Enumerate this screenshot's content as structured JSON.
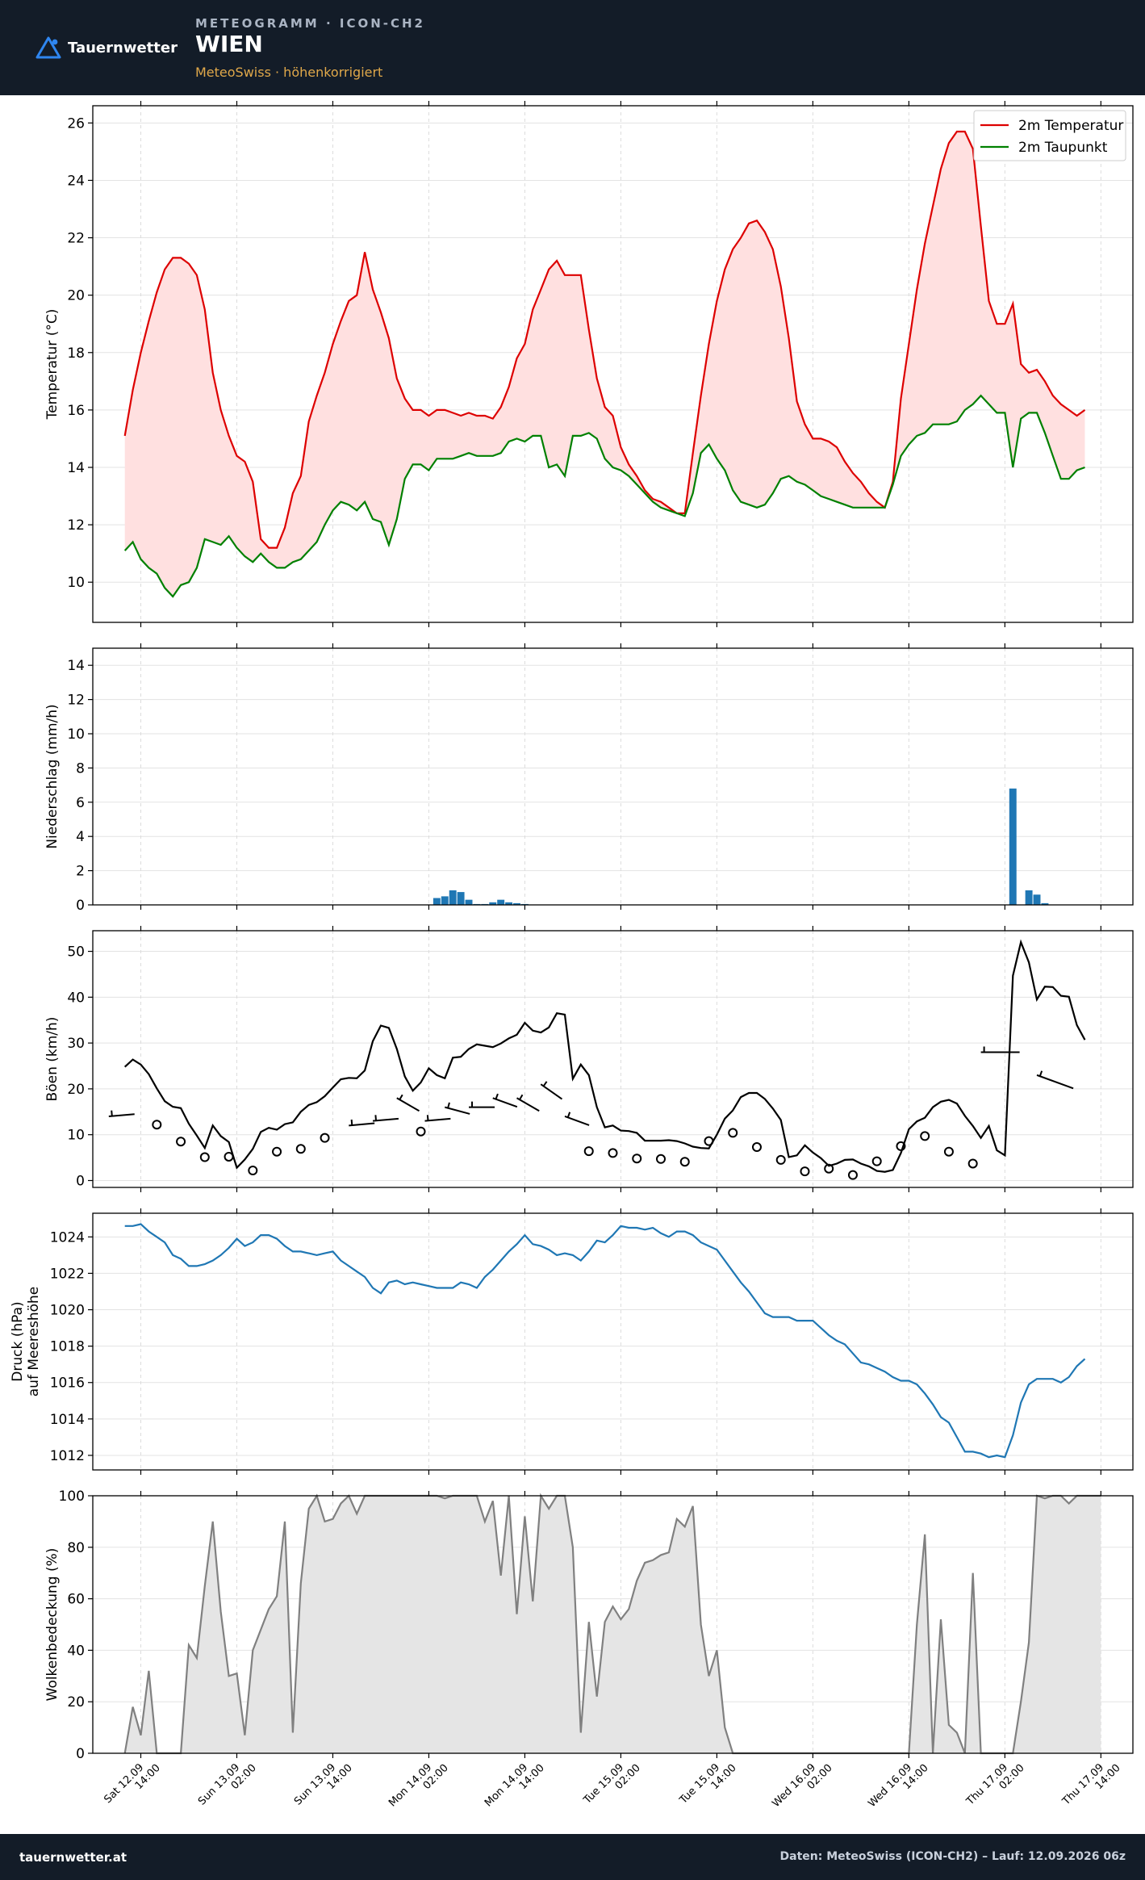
{
  "header": {
    "brand": "Tauernwetter",
    "kicker": "METEOGRAMM · ICON-CH2",
    "title": "WIEN",
    "subtitle": "MeteoSwiss · höhenkorrigiert"
  },
  "footer": {
    "site": "tauernwetter.at",
    "credit": "Daten: MeteoSwiss (ICON-CH2) – Lauf: 12.09.2026 06z"
  },
  "colors": {
    "temperature": "#dd0000",
    "dewpoint": "#008000",
    "temp_fill": "#ffe0e0",
    "precip": "#1f77b4",
    "gust": "#000000",
    "pressure": "#1f77b4",
    "cloud_line": "#808080",
    "cloud_fill": "#e5e5e5",
    "header_bg": "#131c28",
    "subtitle": "#e0a84a"
  },
  "x_axis": {
    "start_hour": 6,
    "end_hour": 126,
    "tick_hours": [
      8,
      20,
      32,
      44,
      56,
      68,
      80,
      92,
      104,
      116,
      128
    ],
    "tick_labels": [
      [
        "Sat 12.09",
        "14:00"
      ],
      [
        "Sun 13.09",
        "02:00"
      ],
      [
        "Sun 13.09",
        "14:00"
      ],
      [
        "Mon 14.09",
        "02:00"
      ],
      [
        "Mon 14.09",
        "14:00"
      ],
      [
        "Tue 15.09",
        "02:00"
      ],
      [
        "Tue 15.09",
        "14:00"
      ],
      [
        "Wed 16.09",
        "02:00"
      ],
      [
        "Wed 16.09",
        "14:00"
      ],
      [
        "Thu 17.09",
        "02:00"
      ],
      [
        "Thu 17.09",
        "14:00"
      ]
    ]
  },
  "chart_data": [
    {
      "type": "line",
      "ylabel": "Temperatur (°C)",
      "ylim": [
        8.6,
        26.6
      ],
      "yticks": [
        10,
        12,
        14,
        16,
        18,
        20,
        22,
        24,
        26
      ],
      "grid": true,
      "legend_position": "top-right",
      "series": [
        {
          "name": "2m Temperatur",
          "values": [
            15.1,
            16.7,
            18.0,
            19.1,
            20.1,
            20.9,
            21.3,
            21.3,
            21.1,
            20.7,
            19.5,
            17.3,
            16.0,
            15.1,
            14.4,
            14.2,
            13.5,
            11.5,
            11.2,
            11.2,
            11.9,
            13.1,
            13.7,
            15.6,
            16.5,
            17.3,
            18.3,
            19.1,
            19.8,
            20.0,
            21.5,
            20.2,
            19.4,
            18.5,
            17.1,
            16.4,
            16.0,
            16.0,
            15.8,
            16.0,
            16.0,
            15.9,
            15.8,
            15.9,
            15.8,
            15.8,
            15.7,
            16.1,
            16.8,
            17.8,
            18.3,
            19.5,
            20.2,
            20.9,
            21.2,
            20.7,
            20.7,
            20.7,
            18.8,
            17.1,
            16.1,
            15.8,
            14.7,
            14.1,
            13.7,
            13.2,
            12.9,
            12.8,
            12.6,
            12.4,
            12.4,
            14.5,
            16.5,
            18.3,
            19.8,
            20.9,
            21.6,
            22.0,
            22.5,
            22.6,
            22.2,
            21.6,
            20.3,
            18.5,
            16.3,
            15.5,
            15.0,
            15.0,
            14.9,
            14.7,
            14.2,
            13.8,
            13.5,
            13.1,
            12.8,
            12.6,
            13.5,
            16.4,
            18.3,
            20.2,
            21.8,
            23.1,
            24.4,
            25.3,
            25.7,
            25.7,
            25.1,
            22.4,
            19.8,
            19.0,
            19.0,
            19.7,
            17.6,
            17.3,
            17.4,
            17.0,
            16.5,
            16.2,
            16.0,
            15.8,
            16.0
          ]
        },
        {
          "name": "2m Taupunkt",
          "values": [
            11.1,
            11.4,
            10.8,
            10.5,
            10.3,
            9.8,
            9.5,
            9.9,
            10.0,
            10.5,
            11.5,
            11.4,
            11.3,
            11.6,
            11.2,
            10.9,
            10.7,
            11.0,
            10.7,
            10.5,
            10.5,
            10.7,
            10.8,
            11.1,
            11.4,
            12.0,
            12.5,
            12.8,
            12.7,
            12.5,
            12.8,
            12.2,
            12.1,
            11.3,
            12.2,
            13.6,
            14.1,
            14.1,
            13.9,
            14.3,
            14.3,
            14.3,
            14.4,
            14.5,
            14.4,
            14.4,
            14.4,
            14.5,
            14.9,
            15.0,
            14.9,
            15.1,
            15.1,
            14.0,
            14.1,
            13.7,
            15.1,
            15.1,
            15.2,
            15.0,
            14.3,
            14.0,
            13.9,
            13.7,
            13.4,
            13.1,
            12.8,
            12.6,
            12.5,
            12.4,
            12.3,
            13.1,
            14.5,
            14.8,
            14.3,
            13.9,
            13.2,
            12.8,
            12.7,
            12.6,
            12.7,
            13.1,
            13.6,
            13.7,
            13.5,
            13.4,
            13.2,
            13.0,
            12.9,
            12.8,
            12.7,
            12.6,
            12.6,
            12.6,
            12.6,
            12.6,
            13.4,
            14.4,
            14.8,
            15.1,
            15.2,
            15.5,
            15.5,
            15.5,
            15.6,
            16.0,
            16.2,
            16.5,
            16.2,
            15.9,
            15.9,
            14.0,
            15.7,
            15.9,
            15.9,
            15.2,
            14.4,
            13.6,
            13.6,
            13.9,
            14.0
          ]
        }
      ]
    },
    {
      "type": "bar",
      "ylabel": "Niederschlag (mm/h)",
      "ylim": [
        0,
        15
      ],
      "yticks": [
        0,
        2,
        4,
        6,
        8,
        10,
        12,
        14
      ],
      "grid": true,
      "series": [
        {
          "name": "",
          "values": [
            0,
            0,
            0,
            0,
            0,
            0,
            0,
            0,
            0,
            0,
            0,
            0,
            0,
            0,
            0,
            0,
            0,
            0,
            0,
            0,
            0,
            0,
            0,
            0,
            0,
            0,
            0,
            0,
            0,
            0,
            0,
            0,
            0,
            0,
            0,
            0,
            0,
            0,
            0,
            0.4,
            0.5,
            0.85,
            0.75,
            0.3,
            0.05,
            0.05,
            0.15,
            0.3,
            0.15,
            0.1,
            0.05,
            0,
            0,
            0,
            0,
            0,
            0,
            0,
            0,
            0,
            0,
            0,
            0,
            0,
            0,
            0,
            0,
            0,
            0,
            0,
            0,
            0,
            0,
            0,
            0,
            0,
            0,
            0,
            0,
            0,
            0,
            0,
            0,
            0,
            0,
            0,
            0,
            0,
            0,
            0,
            0,
            0,
            0,
            0,
            0,
            0,
            0,
            0,
            0,
            0,
            0,
            0,
            0,
            0,
            0,
            0,
            0,
            0,
            0,
            0,
            0,
            6.8,
            0,
            0.85,
            0.6,
            0.1,
            0,
            0,
            0,
            0,
            0
          ]
        }
      ]
    },
    {
      "type": "line",
      "ylabel": "Böen (km/h)",
      "ylim": [
        -1.5,
        54.5
      ],
      "yticks": [
        0,
        10,
        20,
        30,
        40,
        50
      ],
      "grid": true,
      "series": [
        {
          "name": "",
          "values": [
            24.8,
            26.4,
            25.3,
            23.2,
            20.1,
            17.3,
            16.1,
            15.8,
            12.4,
            9.8,
            7.1,
            12.0,
            9.7,
            8.4,
            2.8,
            4.6,
            6.9,
            10.6,
            11.5,
            11.1,
            12.3,
            12.7,
            15.0,
            16.5,
            17.1,
            18.4,
            20.3,
            22.1,
            22.4,
            22.3,
            24.0,
            30.4,
            33.8,
            33.3,
            28.7,
            22.7,
            19.6,
            21.4,
            24.5,
            23.0,
            22.3,
            26.8,
            27.0,
            28.7,
            29.7,
            29.4,
            29.1,
            29.9,
            31.0,
            31.8,
            34.4,
            32.7,
            32.3,
            33.4,
            36.5,
            36.2,
            22.2,
            25.3,
            23.0,
            16.0,
            11.6,
            12.0,
            10.9,
            10.8,
            10.4,
            8.7,
            8.7,
            8.7,
            8.8,
            8.6,
            8.1,
            7.4,
            7.1,
            7.0,
            10.0,
            13.5,
            15.3,
            18.2,
            19.1,
            19.1,
            17.8,
            15.7,
            13.2,
            5.1,
            5.5,
            7.7,
            6.1,
            4.9,
            3.2,
            3.7,
            4.5,
            4.6,
            3.7,
            3.1,
            2.1,
            1.9,
            2.3,
            6.0,
            11.2,
            12.9,
            13.7,
            16.0,
            17.2,
            17.6,
            16.8,
            14.1,
            11.9,
            9.3,
            11.9,
            6.6,
            5.5,
            44.7,
            52.0,
            47.6,
            39.5,
            42.3,
            42.2,
            40.3,
            40.1,
            33.9,
            30.7
          ]
        }
      ],
      "wind_markers": [
        {
          "hour": 4,
          "kind": "barb",
          "speed": 14,
          "dir": 265
        },
        {
          "hour": 10,
          "kind": "calm",
          "value": 12.2
        },
        {
          "hour": 13,
          "kind": "calm",
          "value": 8.5
        },
        {
          "hour": 16,
          "kind": "calm",
          "value": 5.1
        },
        {
          "hour": 19,
          "kind": "calm",
          "value": 5.2
        },
        {
          "hour": 22,
          "kind": "calm",
          "value": 2.2
        },
        {
          "hour": 25,
          "kind": "calm",
          "value": 6.3
        },
        {
          "hour": 28,
          "kind": "calm",
          "value": 6.9
        },
        {
          "hour": 31,
          "kind": "calm",
          "value": 9.3
        },
        {
          "hour": 34,
          "kind": "barb",
          "speed": 12,
          "dir": 265
        },
        {
          "hour": 37,
          "kind": "barb",
          "speed": 13,
          "dir": 265
        },
        {
          "hour": 40,
          "kind": "barb",
          "speed": 18,
          "dir": 300
        },
        {
          "hour": 43,
          "kind": "calm",
          "value": 10.7
        },
        {
          "hour": 43.5,
          "kind": "barb",
          "speed": 13,
          "dir": 265
        },
        {
          "hour": 46,
          "kind": "barb",
          "speed": 16,
          "dir": 285
        },
        {
          "hour": 49,
          "kind": "barb",
          "speed": 16,
          "dir": 270
        },
        {
          "hour": 52,
          "kind": "barb",
          "speed": 18,
          "dir": 290
        },
        {
          "hour": 55,
          "kind": "barb",
          "speed": 18,
          "dir": 300
        },
        {
          "hour": 58,
          "kind": "barb",
          "speed": 21,
          "dir": 305
        },
        {
          "hour": 61,
          "kind": "barb",
          "speed": 14,
          "dir": 290
        },
        {
          "hour": 64,
          "kind": "calm",
          "value": 6.4
        },
        {
          "hour": 67,
          "kind": "calm",
          "value": 6.0
        },
        {
          "hour": 70,
          "kind": "calm",
          "value": 4.8
        },
        {
          "hour": 73,
          "kind": "calm",
          "value": 4.7
        },
        {
          "hour": 76,
          "kind": "calm",
          "value": 4.1
        },
        {
          "hour": 79,
          "kind": "calm",
          "value": 8.6
        },
        {
          "hour": 82,
          "kind": "calm",
          "value": 10.4
        },
        {
          "hour": 85,
          "kind": "calm",
          "value": 7.3
        },
        {
          "hour": 88,
          "kind": "calm",
          "value": 4.5
        },
        {
          "hour": 91,
          "kind": "calm",
          "value": 2.0
        },
        {
          "hour": 94,
          "kind": "calm",
          "value": 2.6
        },
        {
          "hour": 97,
          "kind": "calm",
          "value": 1.2
        },
        {
          "hour": 100,
          "kind": "calm",
          "value": 4.2
        },
        {
          "hour": 103,
          "kind": "calm",
          "value": 7.5
        },
        {
          "hour": 106,
          "kind": "calm",
          "value": 9.7
        },
        {
          "hour": 109,
          "kind": "calm",
          "value": 6.3
        },
        {
          "hour": 112,
          "kind": "calm",
          "value": 3.7
        },
        {
          "hour": 113,
          "kind": "barb",
          "speed": 28,
          "dir": 270
        },
        {
          "hour": 120,
          "kind": "barb",
          "speed": 23,
          "dir": 290
        }
      ]
    },
    {
      "type": "line",
      "ylabel": "Druck (hPa)\nauf Meereshöhe",
      "ylim": [
        1011.2,
        1025.3
      ],
      "yticks": [
        1012,
        1014,
        1016,
        1018,
        1020,
        1022,
        1024
      ],
      "grid": true,
      "series": [
        {
          "name": "",
          "values": [
            1024.6,
            1024.6,
            1024.7,
            1024.3,
            1024.0,
            1023.7,
            1023.0,
            1022.8,
            1022.4,
            1022.4,
            1022.5,
            1022.7,
            1023.0,
            1023.4,
            1023.9,
            1023.5,
            1023.7,
            1024.1,
            1024.1,
            1023.9,
            1023.5,
            1023.2,
            1023.2,
            1023.1,
            1023.0,
            1023.1,
            1023.2,
            1022.7,
            1022.4,
            1022.1,
            1021.8,
            1021.2,
            1020.9,
            1021.5,
            1021.6,
            1021.4,
            1021.5,
            1021.4,
            1021.3,
            1021.2,
            1021.2,
            1021.2,
            1021.5,
            1021.4,
            1021.2,
            1021.8,
            1022.2,
            1022.7,
            1023.2,
            1023.6,
            1024.1,
            1023.6,
            1023.5,
            1023.3,
            1023.0,
            1023.1,
            1023.0,
            1022.7,
            1023.2,
            1023.8,
            1023.7,
            1024.1,
            1024.6,
            1024.5,
            1024.5,
            1024.4,
            1024.5,
            1024.2,
            1024.0,
            1024.3,
            1024.3,
            1024.1,
            1023.7,
            1023.5,
            1023.3,
            1022.7,
            1022.1,
            1021.5,
            1021.0,
            1020.4,
            1019.8,
            1019.6,
            1019.6,
            1019.6,
            1019.4,
            1019.4,
            1019.4,
            1019.0,
            1018.6,
            1018.3,
            1018.1,
            1017.6,
            1017.1,
            1017.0,
            1016.8,
            1016.6,
            1016.3,
            1016.1,
            1016.1,
            1015.9,
            1015.4,
            1014.8,
            1014.1,
            1013.8,
            1013.0,
            1012.2,
            1012.2,
            1012.1,
            1011.9,
            1012.0,
            1011.9,
            1013.1,
            1014.9,
            1015.9,
            1016.2,
            1016.2,
            1016.2,
            1016.0,
            1016.3,
            1016.9,
            1017.3
          ]
        }
      ]
    },
    {
      "type": "area",
      "ylabel": "Wolkenbedeckung (%)",
      "ylim": [
        0,
        100
      ],
      "yticks": [
        0,
        20,
        40,
        60,
        80,
        100
      ],
      "grid": true,
      "series": [
        {
          "name": "",
          "values": [
            0,
            18,
            7,
            32,
            0,
            0,
            0,
            0,
            42,
            37,
            65,
            90,
            55,
            30,
            31,
            7,
            40,
            48,
            56,
            61,
            90,
            8,
            66,
            95,
            100,
            90,
            91,
            97,
            100,
            93,
            100,
            100,
            100,
            100,
            100,
            100,
            100,
            100,
            100,
            100,
            99,
            100,
            100,
            100,
            100,
            90,
            98,
            69,
            100,
            54,
            92,
            59,
            100,
            95,
            100,
            100,
            80,
            8,
            51,
            22,
            51,
            57,
            52,
            56,
            67,
            74,
            75,
            77,
            78,
            91,
            88,
            96,
            50,
            30,
            40,
            10,
            0,
            0,
            0,
            0,
            0,
            0,
            0,
            0,
            0,
            0,
            0,
            0,
            0,
            0,
            0,
            0,
            0,
            0,
            0,
            0,
            0,
            0,
            0,
            50,
            85,
            0,
            52,
            11,
            8,
            0,
            70,
            0,
            0,
            0,
            0,
            0,
            20,
            43,
            100,
            99,
            100,
            100,
            97,
            100,
            100,
            100,
            100
          ]
        }
      ]
    }
  ]
}
